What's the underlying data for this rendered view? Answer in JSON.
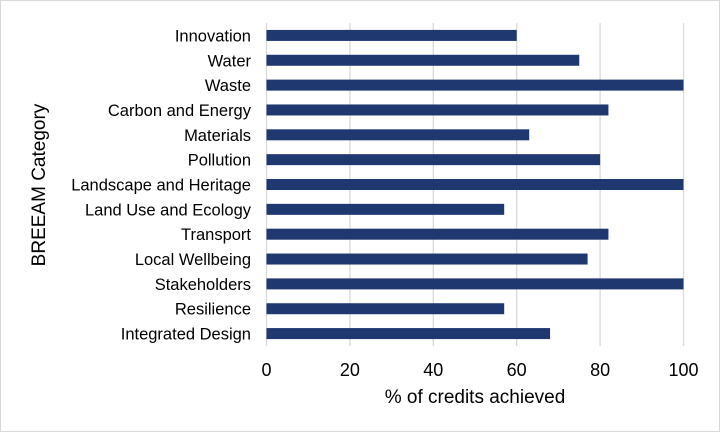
{
  "chart_data": {
    "type": "bar",
    "orientation": "horizontal",
    "categories": [
      "Innovation",
      "Water",
      "Waste",
      "Carbon and Energy",
      "Materials",
      "Pollution",
      "Landscape and Heritage",
      "Land Use and Ecology",
      "Transport",
      "Local Wellbeing",
      "Stakeholders",
      "Resilience",
      "Integrated Design"
    ],
    "values": [
      60,
      75,
      100,
      82,
      63,
      80,
      100,
      57,
      82,
      77,
      100,
      57,
      68
    ],
    "xlabel": "% of credits achieved",
    "ylabel": "BREEAM Category",
    "xlim": [
      0,
      100
    ],
    "xticks": [
      "0",
      "20",
      "40",
      "60",
      "80",
      "100"
    ],
    "grid": "vertical",
    "bar_color": "#1f3870",
    "grid_color": "#d9d9d9"
  }
}
